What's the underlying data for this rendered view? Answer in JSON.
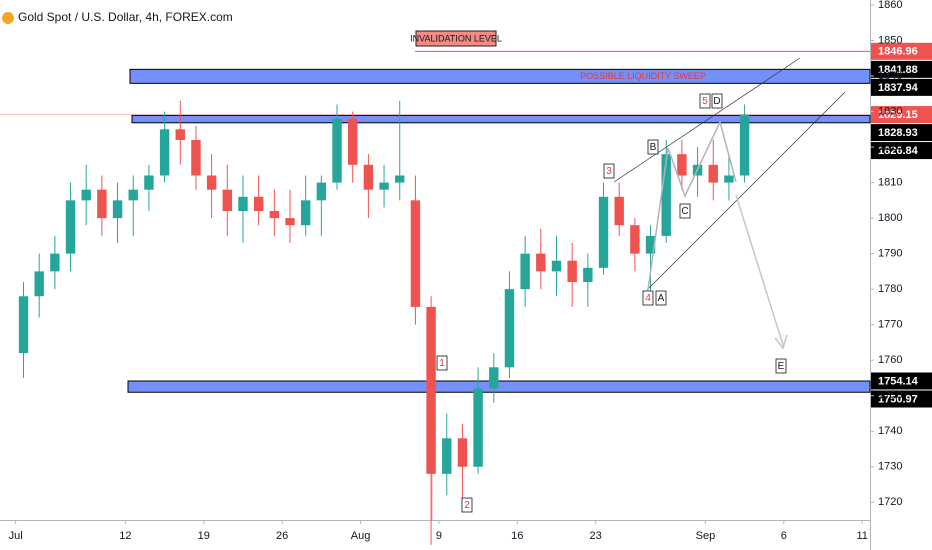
{
  "chart_data": {
    "type": "candlestick",
    "title": "Gold Spot / U.S. Dollar, 4h, FOREX.com",
    "x": [
      0,
      1,
      2,
      3,
      4,
      5,
      6,
      7,
      8,
      9,
      10,
      11,
      12,
      13,
      14,
      15,
      16,
      17,
      18,
      19,
      20,
      21,
      22,
      23,
      24,
      25,
      26,
      27,
      28,
      29,
      30,
      31,
      32,
      33,
      34,
      35,
      36,
      37,
      38,
      39,
      40,
      41,
      42,
      43,
      44,
      45,
      46
    ],
    "open": [
      1762,
      1778,
      1785,
      1790,
      1805,
      1808,
      1800,
      1805,
      1808,
      1812,
      1825,
      1822,
      1812,
      1808,
      1802,
      1806,
      1802,
      1800,
      1798,
      1805,
      1810,
      1828,
      1815,
      1808,
      1810,
      1805,
      1775,
      1728,
      1738,
      1730,
      1752,
      1758,
      1780,
      1790,
      1785,
      1788,
      1782,
      1786,
      1806,
      1798,
      1790,
      1795,
      1818,
      1812,
      1815,
      1810,
      1812
    ],
    "high": [
      1782,
      1790,
      1795,
      1810,
      1815,
      1812,
      1810,
      1812,
      1815,
      1830,
      1833,
      1826,
      1818,
      1815,
      1812,
      1812,
      1808,
      1808,
      1812,
      1812,
      1832,
      1830,
      1818,
      1815,
      1833,
      1812,
      1778,
      1745,
      1742,
      1758,
      1762,
      1785,
      1795,
      1797,
      1795,
      1793,
      1790,
      1810,
      1810,
      1800,
      1798,
      1822,
      1822,
      1820,
      1822,
      1818,
      1832
    ],
    "low": [
      1755,
      1772,
      1780,
      1785,
      1798,
      1795,
      1793,
      1795,
      1802,
      1810,
      1815,
      1808,
      1800,
      1795,
      1793,
      1798,
      1795,
      1793,
      1795,
      1795,
      1808,
      1810,
      1800,
      1803,
      1805,
      1770,
      1708,
      1722,
      1720,
      1728,
      1748,
      1755,
      1775,
      1780,
      1778,
      1775,
      1775,
      1784,
      1795,
      1785,
      1778,
      1793,
      1808,
      1806,
      1805,
      1805,
      1810
    ],
    "close": [
      1778,
      1785,
      1790,
      1805,
      1808,
      1800,
      1805,
      1808,
      1812,
      1825,
      1822,
      1812,
      1808,
      1802,
      1806,
      1802,
      1800,
      1798,
      1805,
      1810,
      1828,
      1815,
      1808,
      1810,
      1812,
      1775,
      1728,
      1738,
      1730,
      1752,
      1758,
      1780,
      1790,
      1785,
      1788,
      1782,
      1786,
      1806,
      1798,
      1790,
      1795,
      1818,
      1812,
      1815,
      1810,
      1812,
      1829.15
    ],
    "up_color": "#26a69a",
    "down_color": "#ef5350",
    "xlim": [
      -1.5,
      54
    ],
    "xticks": [
      {
        "value": -0.5,
        "label": "Jul"
      },
      {
        "value": 6.5,
        "label": "12"
      },
      {
        "value": 11.5,
        "label": "19"
      },
      {
        "value": 16.5,
        "label": "26"
      },
      {
        "value": 21.5,
        "label": "Aug"
      },
      {
        "value": 26.5,
        "label": "9"
      },
      {
        "value": 31.5,
        "label": "16"
      },
      {
        "value": 36.5,
        "label": "23"
      },
      {
        "value": 43.5,
        "label": "Sep"
      },
      {
        "value": 48.5,
        "label": "6"
      },
      {
        "value": 53.5,
        "label": "11"
      }
    ],
    "ylim": [
      1715,
      1860
    ],
    "yticks": [
      1720,
      1730,
      1740,
      1750,
      1760,
      1770,
      1780,
      1790,
      1800,
      1810,
      1820,
      1830,
      1840,
      1850,
      1860
    ],
    "zones": [
      {
        "top": 1841.88,
        "bottom": 1837.94
      },
      {
        "top": 1828.93,
        "bottom": 1826.84
      },
      {
        "top": 1754.14,
        "bottom": 1750.97
      }
    ],
    "zone_color": "#5c7cfa",
    "invalidation_level": 1846.96,
    "last_price": 1829.15,
    "annotations": {
      "invalidation": "INVALIDATION LEVEL",
      "sweep": "POSSIBLE LIQUIDITY SWEEP"
    },
    "wave_labels": [
      "1",
      "2",
      "3",
      "4",
      "5",
      "A",
      "B",
      "C",
      "D",
      "E"
    ]
  }
}
